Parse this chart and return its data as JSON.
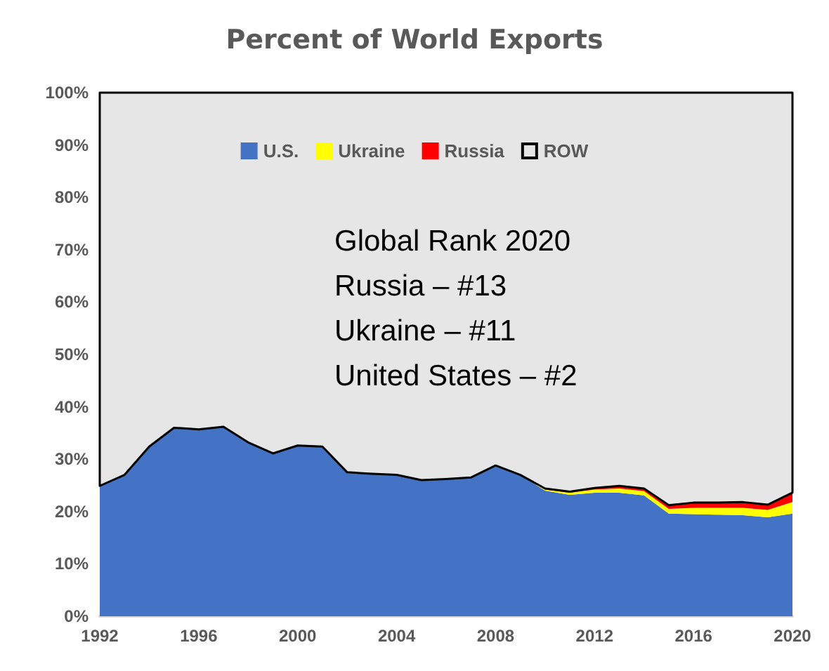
{
  "chart_data": {
    "type": "area",
    "stacked": true,
    "title": "Percent of World Exports",
    "x": [
      1992,
      1993,
      1994,
      1995,
      1996,
      1997,
      1998,
      1999,
      2000,
      2001,
      2002,
      2003,
      2004,
      2005,
      2006,
      2007,
      2008,
      2009,
      2010,
      2011,
      2012,
      2013,
      2014,
      2015,
      2016,
      2017,
      2018,
      2019,
      2020
    ],
    "series": [
      {
        "name": "U.S.",
        "color": "#4472c4",
        "values": [
          24.9,
          27,
          32.4,
          36,
          35.7,
          36.2,
          33.2,
          31.1,
          32.6,
          32.4,
          27.5,
          27.2,
          27,
          26,
          26.2,
          26.5,
          28.8,
          27,
          24,
          23.2,
          23.6,
          23.6,
          23.1,
          19.6,
          19.5,
          19.4,
          19.3,
          18.9,
          19.6
        ]
      },
      {
        "name": "Ukraine",
        "color": "#ffff00",
        "values": [
          0,
          0,
          0,
          0,
          0,
          0,
          0,
          0,
          0,
          0,
          0,
          0,
          0,
          0,
          0,
          0,
          0,
          0,
          0.2,
          0.4,
          0.6,
          0.8,
          0.8,
          0.9,
          1.2,
          1.3,
          1.4,
          1.4,
          2.2
        ]
      },
      {
        "name": "Russia",
        "color": "#ff0000",
        "values": [
          0,
          0,
          0,
          0,
          0,
          0,
          0,
          0,
          0,
          0,
          0,
          0,
          0,
          0,
          0,
          0,
          0,
          0,
          0.2,
          0.2,
          0.3,
          0.5,
          0.5,
          0.7,
          1.0,
          1.0,
          1.1,
          1.0,
          1.8
        ]
      },
      {
        "name": "ROW",
        "color": "#e6e6e6",
        "values": [
          75.1,
          73,
          67.6,
          64,
          64.3,
          63.8,
          66.8,
          68.9,
          67.4,
          67.6,
          72.5,
          72.8,
          73,
          74,
          73.8,
          73.5,
          71.2,
          73,
          75.6,
          76.2,
          75.5,
          75.1,
          75.6,
          78.8,
          78.3,
          78.3,
          78.2,
          78.7,
          76.4
        ]
      }
    ],
    "xlim": [
      1992,
      2020
    ],
    "xticks": [
      1992,
      1996,
      2000,
      2004,
      2008,
      2012,
      2016,
      2020
    ],
    "ylim": [
      0,
      100
    ],
    "yticks": [
      {
        "value": 0,
        "label": "0%"
      },
      {
        "value": 10,
        "label": "10%"
      },
      {
        "value": 20,
        "label": "20%"
      },
      {
        "value": 30,
        "label": "30%"
      },
      {
        "value": 40,
        "label": "40%"
      },
      {
        "value": 50,
        "label": "50%"
      },
      {
        "value": 60,
        "label": "60%"
      },
      {
        "value": 70,
        "label": "70%"
      },
      {
        "value": 80,
        "label": "80%"
      },
      {
        "value": 90,
        "label": "90%"
      },
      {
        "value": 100,
        "label": "100%"
      }
    ],
    "grid": false,
    "legend": "top",
    "annotations": [
      "Global Rank 2020",
      "Russia – #13",
      "Ukraine – #11",
      "United States – #2"
    ]
  }
}
